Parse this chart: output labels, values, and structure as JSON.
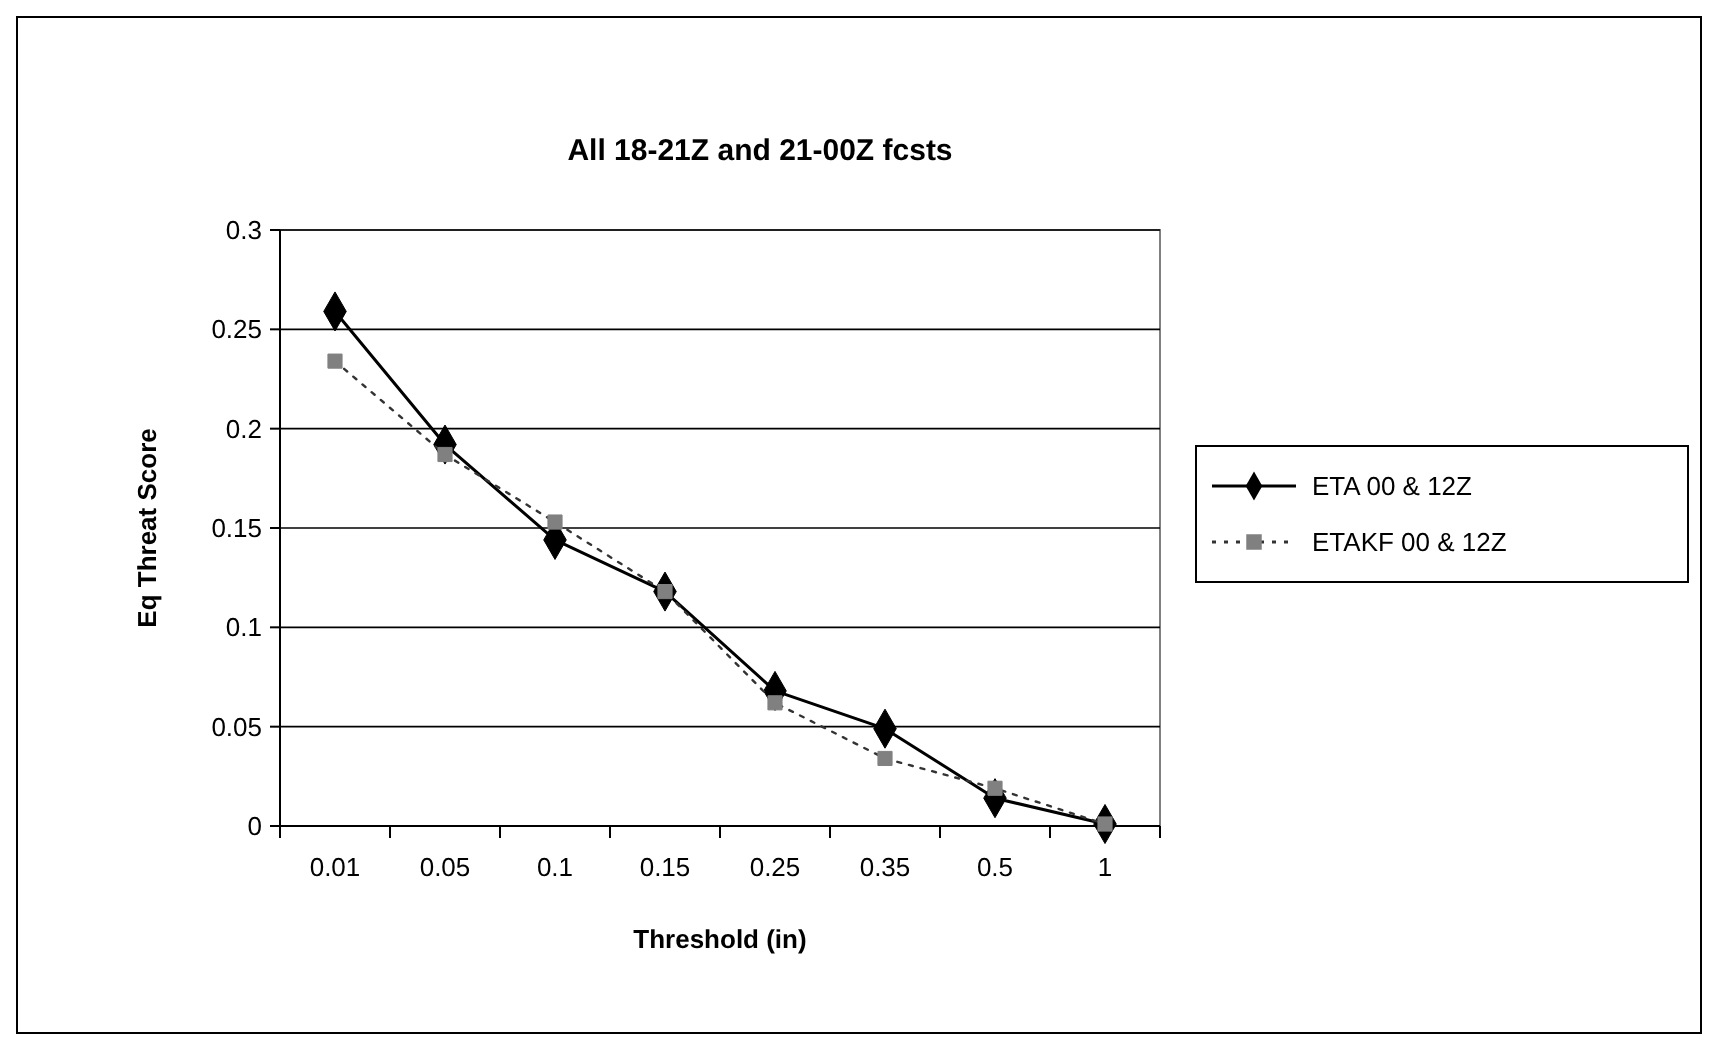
{
  "chart_data": {
    "type": "line",
    "title": "All 18-21Z and 21-00Z fcsts",
    "xlabel": "Threshold (in)",
    "ylabel": "Eq Threat Score",
    "categories": [
      "0.01",
      "0.05",
      "0.1",
      "0.15",
      "0.25",
      "0.35",
      "0.5",
      "1"
    ],
    "series": [
      {
        "name": "ETA 00 & 12Z",
        "color": "#000000",
        "marker": "diamond",
        "line_style": "solid",
        "values": [
          0.259,
          0.192,
          0.144,
          0.118,
          0.068,
          0.049,
          0.014,
          0.001
        ]
      },
      {
        "name": "ETAKF 00 & 12Z",
        "color": "#808080",
        "marker": "square",
        "line_style": "dotted",
        "values": [
          0.234,
          0.187,
          0.153,
          0.118,
          0.062,
          0.034,
          0.019,
          0.001
        ]
      }
    ],
    "ylim": [
      0,
      0.3
    ],
    "yticks": [
      0,
      {
        "value": 0.05,
        "label": "0.05"
      },
      {
        "value": 0.1,
        "label": "0.1"
      },
      {
        "value": 0.15,
        "label": "0.15"
      },
      {
        "value": 0.2,
        "label": "0.2"
      },
      {
        "value": 0.25,
        "label": "0.25"
      },
      {
        "value": 0.3,
        "label": "0.3"
      }
    ],
    "grid": "y",
    "legend": "right"
  }
}
